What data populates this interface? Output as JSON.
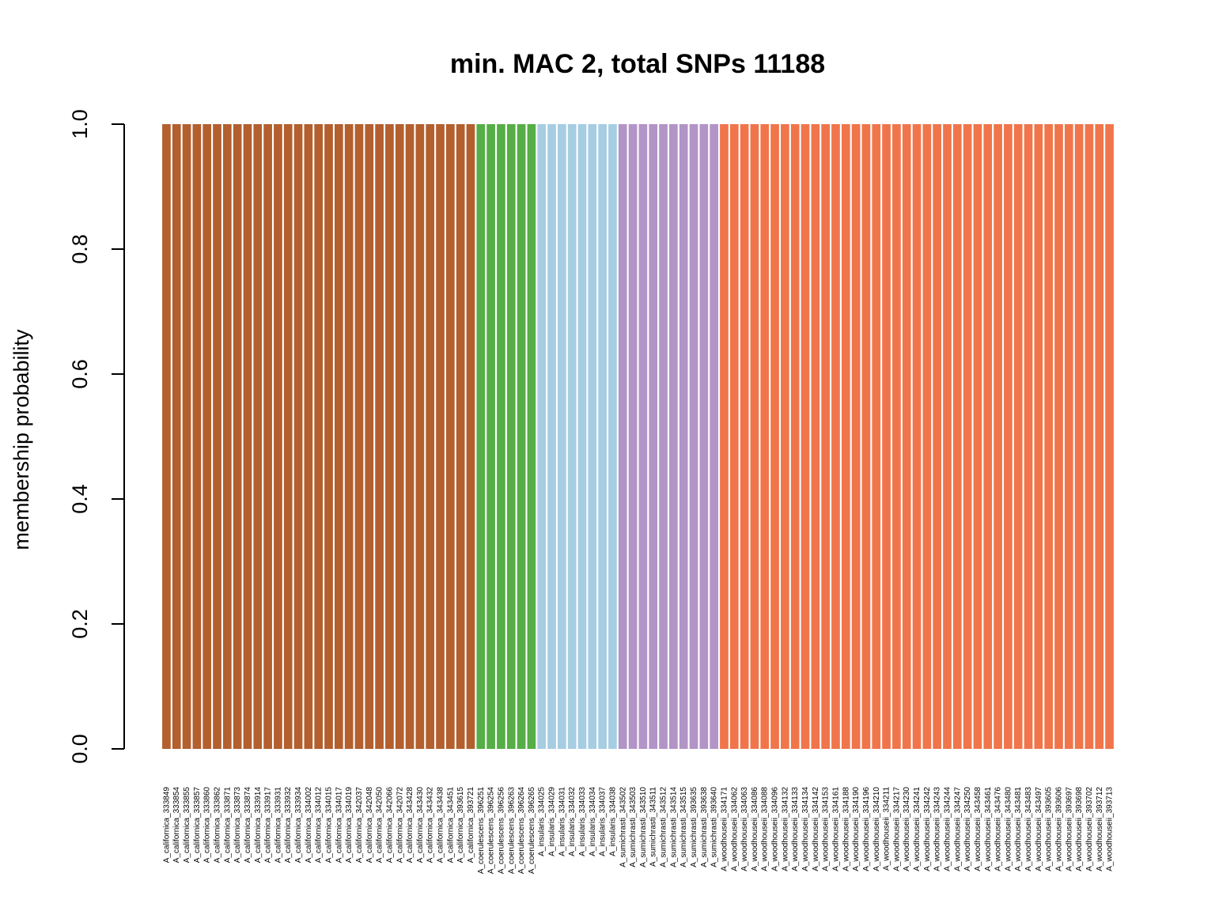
{
  "chart_data": {
    "type": "bar",
    "stacked": true,
    "title": "min. MAC 2, total SNPs 11188",
    "xlabel": "",
    "ylabel": "membership probability",
    "ylim": [
      0,
      1
    ],
    "yticks": [
      "0.0",
      "0.2",
      "0.4",
      "0.6",
      "0.8",
      "1.0"
    ],
    "legend": "none",
    "grid": false,
    "cluster_colors": [
      "#B35F2E",
      "#56AE47",
      "#A6CDE2",
      "#B294C6",
      "#F0754B"
    ],
    "categories": [
      "A_californica_333849",
      "A_californica_333854",
      "A_californica_333855",
      "A_californica_333857",
      "A_californica_333860",
      "A_californica_333862",
      "A_californica_333871",
      "A_californica_333873",
      "A_californica_333874",
      "A_californica_333914",
      "A_californica_333917",
      "A_californica_333931",
      "A_californica_333932",
      "A_californica_333934",
      "A_californica_334002",
      "A_californica_334012",
      "A_californica_334015",
      "A_californica_334017",
      "A_californica_334019",
      "A_californica_342037",
      "A_californica_342048",
      "A_californica_342050",
      "A_californica_342066",
      "A_californica_342072",
      "A_californica_343428",
      "A_californica_343430",
      "A_californica_343432",
      "A_californica_343438",
      "A_californica_343451",
      "A_californica_393615",
      "A_californica_393721",
      "A_coerulescens_396251",
      "A_coerulescens_396254",
      "A_coerulescens_396256",
      "A_coerulescens_396263",
      "A_coerulescens_396264",
      "A_coerulescens_396265",
      "A_insularis_334025",
      "A_insularis_334029",
      "A_insularis_334031",
      "A_insularis_334032",
      "A_insularis_334033",
      "A_insularis_334034",
      "A_insularis_334037",
      "A_insularis_334038",
      "A_sumichrasti_343502",
      "A_sumichrasti_343503",
      "A_sumichrasti_343510",
      "A_sumichrasti_343511",
      "A_sumichrasti_343512",
      "A_sumichrasti_343514",
      "A_sumichrasti_343515",
      "A_sumichrasti_393635",
      "A_sumichrasti_393638",
      "A_sumichrasti_393640",
      "A_woodhouseii_334171",
      "A_woodhouseii_334062",
      "A_woodhouseii_334063",
      "A_woodhouseii_334086",
      "A_woodhouseii_334088",
      "A_woodhouseii_334096",
      "A_woodhouseii_334132",
      "A_woodhouseii_334133",
      "A_woodhouseii_334134",
      "A_woodhouseii_334142",
      "A_woodhouseii_334153",
      "A_woodhouseii_334161",
      "A_woodhouseii_334188",
      "A_woodhouseii_334190",
      "A_woodhouseii_334196",
      "A_woodhouseii_334210",
      "A_woodhouseii_334211",
      "A_woodhouseii_334217",
      "A_woodhouseii_334230",
      "A_woodhouseii_334241",
      "A_woodhouseii_334242",
      "A_woodhouseii_334243",
      "A_woodhouseii_334244",
      "A_woodhouseii_334247",
      "A_woodhouseii_334250",
      "A_woodhouseii_343458",
      "A_woodhouseii_343461",
      "A_woodhouseii_343476",
      "A_woodhouseii_343480",
      "A_woodhouseii_343481",
      "A_woodhouseii_343483",
      "A_woodhouseii_343497",
      "A_woodhouseii_393605",
      "A_woodhouseii_393606",
      "A_woodhouseii_393697",
      "A_woodhouseii_393698",
      "A_woodhouseii_393702",
      "A_woodhouseii_393712",
      "A_woodhouseii_393713"
    ],
    "groups": [
      {
        "cluster": 0,
        "count": 31
      },
      {
        "cluster": 1,
        "count": 6
      },
      {
        "cluster": 2,
        "count": 8
      },
      {
        "cluster": 3,
        "count": 10
      },
      {
        "cluster": 4,
        "count": 39
      }
    ],
    "bar_value": 1.0
  }
}
